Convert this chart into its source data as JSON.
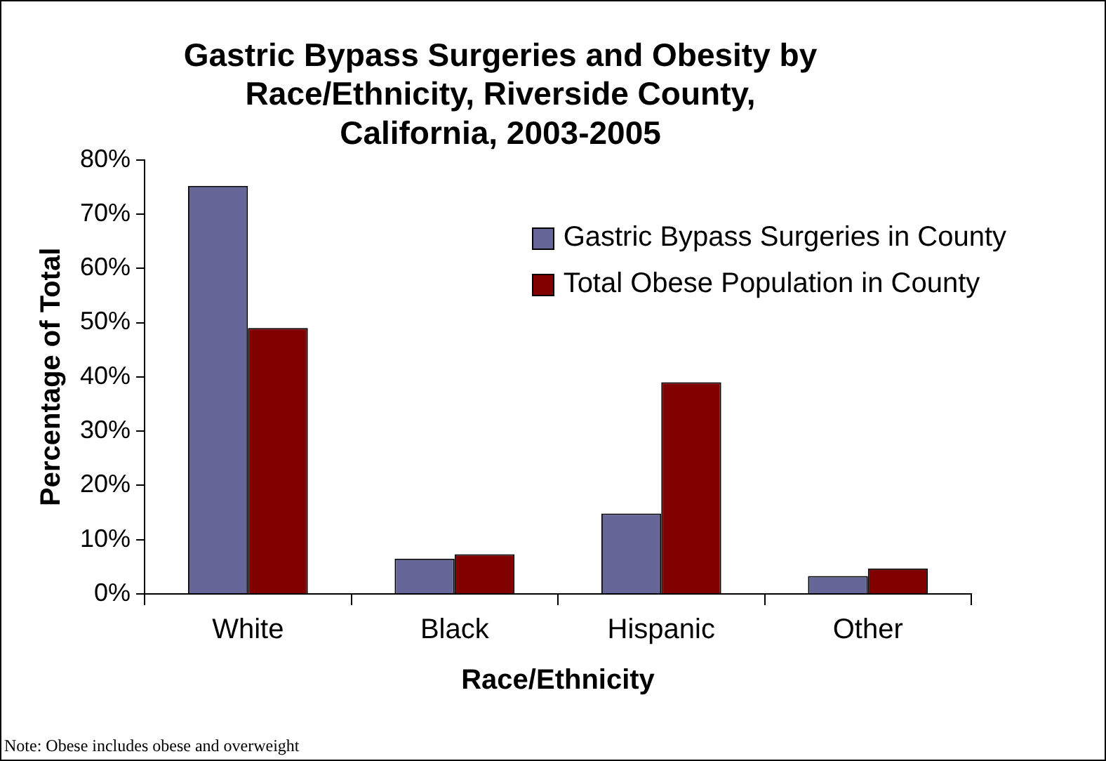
{
  "chart_data": {
    "type": "bar",
    "title": "Gastric Bypass Surgeries and Obesity by Race/Ethnicity, Riverside County, California, 2003-2005",
    "xlabel": "Race/Ethnicity",
    "ylabel": "Percentage of Total",
    "categories": [
      "White",
      "Black",
      "Hispanic",
      "Other"
    ],
    "series": [
      {
        "name": "Gastric Bypass Surgeries in County",
        "color": "#666699",
        "values": [
          75.2,
          6.5,
          14.8,
          3.3
        ]
      },
      {
        "name": "Total Obese Population in County",
        "color": "#800000",
        "values": [
          49.0,
          7.3,
          39.0,
          4.7
        ]
      }
    ],
    "ylim": [
      0,
      80
    ],
    "yticks": [
      {
        "value": 0,
        "label": "0%"
      },
      {
        "value": 10,
        "label": "10%"
      },
      {
        "value": 20,
        "label": "20%"
      },
      {
        "value": 30,
        "label": "30%"
      },
      {
        "value": 40,
        "label": "40%"
      },
      {
        "value": 50,
        "label": "50%"
      },
      {
        "value": 60,
        "label": "60%"
      },
      {
        "value": 70,
        "label": "70%"
      },
      {
        "value": 80,
        "label": "80%"
      }
    ],
    "grid": false,
    "legend": "top right",
    "annotations": [
      "Note: Obese includes obese and overweight"
    ]
  }
}
